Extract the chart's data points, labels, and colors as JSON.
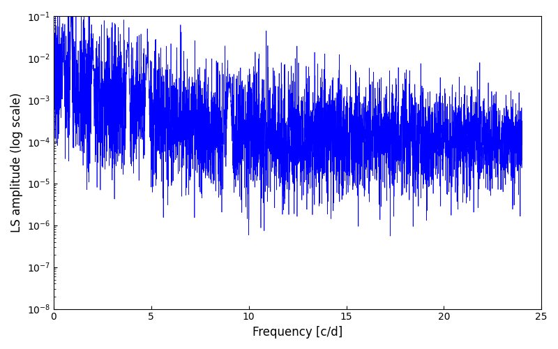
{
  "xlabel": "Frequency [c/d]",
  "ylabel": "LS amplitude (log scale)",
  "xlim": [
    0,
    25
  ],
  "ylim": [
    1e-08,
    0.1
  ],
  "line_color": "#0000ff",
  "line_width": 0.5,
  "yscale": "log",
  "figsize": [
    8.0,
    5.0
  ],
  "dpi": 100,
  "seed": 137,
  "n_points": 5000,
  "freq_max": 24.0,
  "background_color": "#ffffff"
}
